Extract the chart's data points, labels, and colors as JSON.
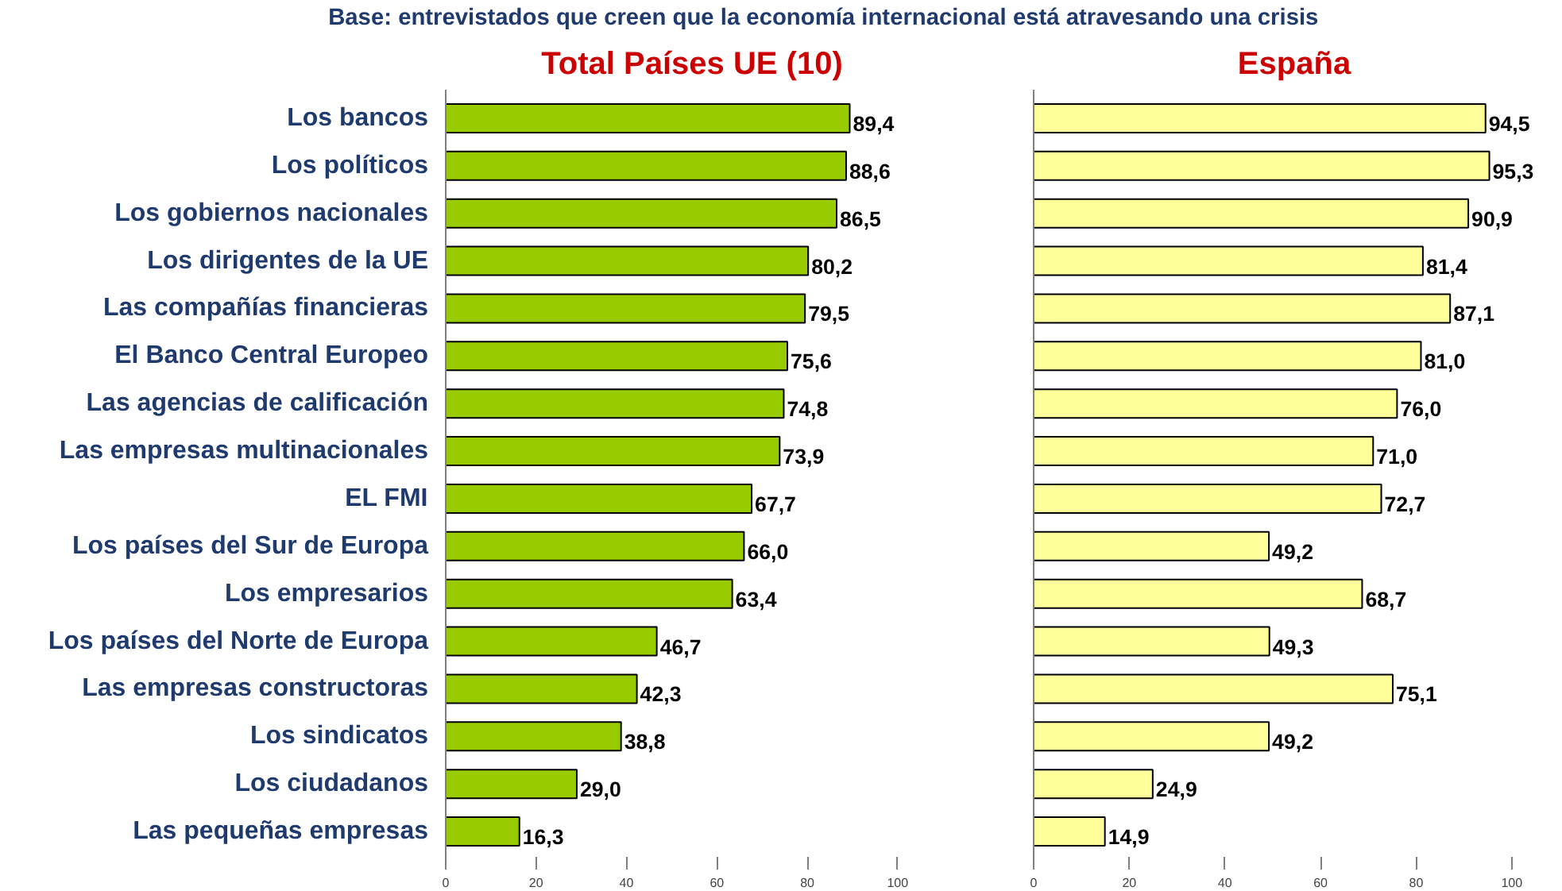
{
  "chart_data": [
    {
      "type": "bar",
      "orientation": "horizontal",
      "subtitle": "Base:  entrevistados  que  creen  que la  economía  internacional  está  atravesando  una  crisis",
      "title": "Total Países UE (10)",
      "categories": [
        "Los bancos",
        "Los políticos",
        "Los gobiernos nacionales",
        "Los dirigentes de la UE",
        "Las compañías financieras",
        "El Banco Central Europeo",
        "Las agencias de calificación",
        "Las empresas multinacionales",
        "EL FMI",
        "Los países del Sur de Europa",
        "Los empresarios",
        "Los países del Norte de Europa",
        "Las empresas constructoras",
        "Los sindicatos",
        "Los ciudadanos",
        "Las pequeñas empresas"
      ],
      "values": [
        89.4,
        88.6,
        86.5,
        80.2,
        79.5,
        75.6,
        74.8,
        73.9,
        67.7,
        66.0,
        63.4,
        46.7,
        42.3,
        38.8,
        29.0,
        16.3
      ],
      "value_labels": [
        "89,4",
        "88,6",
        "86,5",
        "80,2",
        "79,5",
        "75,6",
        "74,8",
        "73,9",
        "67,7",
        "66,0",
        "63,4",
        "46,7",
        "42,3",
        "38,8",
        "29,0",
        "16,3"
      ],
      "color": "#99cc00",
      "xlim": [
        0,
        100
      ],
      "xticks": [
        0,
        20,
        40,
        60,
        80,
        100
      ],
      "grid": false,
      "legend": false
    },
    {
      "type": "bar",
      "orientation": "horizontal",
      "title": "España",
      "categories": [
        null,
        null,
        null,
        null,
        null,
        null,
        null,
        null,
        null,
        null,
        null,
        null,
        null,
        null,
        null,
        null
      ],
      "values": [
        94.5,
        95.3,
        90.9,
        81.4,
        87.1,
        81.0,
        76.0,
        71.0,
        72.7,
        49.2,
        68.7,
        49.3,
        75.1,
        49.2,
        24.9,
        14.9
      ],
      "value_labels": [
        "94,5",
        "95,3",
        "90,9",
        "81,4",
        "87,1",
        "81,0",
        "76,0",
        "71,0",
        "72,7",
        "49,2",
        "68,7",
        "49,3",
        "75,1",
        "49,2",
        "24,9",
        "14,9"
      ],
      "color": "#ffff99",
      "xlim": [
        0,
        100
      ],
      "xticks": [
        0,
        20,
        40,
        60,
        80,
        100
      ],
      "tick_labels": "x",
      "grid": false,
      "legend": false
    }
  ]
}
